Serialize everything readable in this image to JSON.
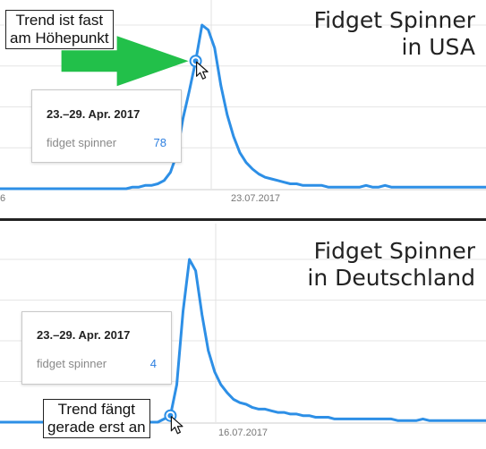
{
  "chart_data": [
    {
      "type": "line",
      "title": [
        "Fidget Spinner",
        "in USA"
      ],
      "series": [
        {
          "name": "",
          "values": [
            0,
            0,
            0,
            0,
            0,
            0,
            0,
            0,
            0,
            0,
            0,
            0,
            0,
            0,
            0,
            0,
            0,
            0,
            0,
            0,
            0,
            1,
            1,
            2,
            2,
            3,
            5,
            10,
            21,
            43,
            60,
            78,
            100,
            97,
            86,
            63,
            45,
            32,
            22,
            16,
            12,
            9,
            7,
            6,
            5,
            4,
            3,
            3,
            2,
            2,
            2,
            2,
            1,
            1,
            1,
            1,
            1,
            1,
            2,
            1,
            1,
            2,
            1,
            1,
            1,
            1,
            1,
            1,
            1,
            1,
            1,
            1,
            1,
            1,
            1,
            1,
            1,
            1
          ]
        }
      ],
      "ylim": [
        0,
        100
      ],
      "x_tick_labels": [
        "6",
        "23.07.2017"
      ],
      "tooltip": {
        "date": "23.–29. Apr. 2017",
        "term": "fidget spinner",
        "value": "78"
      },
      "callout": [
        "Trend ist fast",
        "am Höhepunkt"
      ],
      "line_color": "#2d8fe6",
      "arrow_color": "#22c04a"
    },
    {
      "type": "line",
      "title": [
        "Fidget Spinner",
        "in Deutschland"
      ],
      "series": [
        {
          "name": "",
          "values": [
            0,
            0,
            0,
            0,
            0,
            0,
            0,
            0,
            0,
            0,
            0,
            0,
            0,
            0,
            0,
            0,
            0,
            0,
            0,
            0,
            0,
            0,
            0,
            0,
            0,
            0,
            2,
            4,
            23,
            68,
            100,
            93,
            66,
            44,
            31,
            23,
            18,
            14,
            12,
            11,
            9,
            8,
            8,
            7,
            6,
            6,
            5,
            5,
            4,
            4,
            3,
            3,
            3,
            2,
            2,
            2,
            2,
            2,
            2,
            2,
            2,
            2,
            2,
            1,
            1,
            1,
            1,
            2,
            1,
            1,
            1,
            1,
            1,
            1,
            1,
            1,
            1,
            1
          ]
        }
      ],
      "ylim": [
        0,
        100
      ],
      "x_tick_labels": [
        "16.07.2017"
      ],
      "tooltip": {
        "date": "23.–29. Apr. 2017",
        "term": "fidget spinner",
        "value": "4"
      },
      "callout": [
        "Trend fängt",
        "gerade erst an"
      ],
      "line_color": "#2d8fe6"
    }
  ]
}
